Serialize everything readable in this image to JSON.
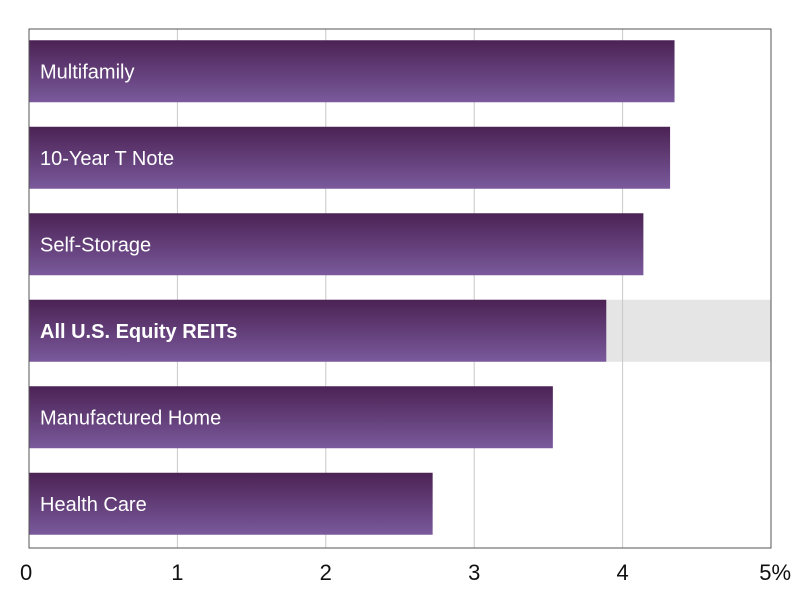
{
  "chart_data": {
    "type": "bar",
    "orientation": "horizontal",
    "categories": [
      "Multifamily",
      "10-Year T Note",
      "Self-Storage",
      "All U.S. Equity REITs",
      "Manufactured Home",
      "Health Care"
    ],
    "values": [
      4.35,
      4.32,
      4.14,
      3.89,
      3.53,
      2.72
    ],
    "highlighted_category": "All U.S. Equity REITs",
    "title": "",
    "xlabel": "",
    "ylabel": "",
    "xlim": [
      0,
      5
    ],
    "x_ticks": [
      0,
      1,
      2,
      3,
      4,
      5
    ],
    "x_tick_labels": [
      "0",
      "1",
      "2",
      "3",
      "4",
      "5%"
    ],
    "grid": true,
    "legend": "none",
    "colors": {
      "bar_top": "#4b2254",
      "bar_bottom": "#7a5a9c",
      "highlight_band": "#e5e5e6",
      "grid": "#c8c8c8",
      "frame": "#555555"
    }
  }
}
